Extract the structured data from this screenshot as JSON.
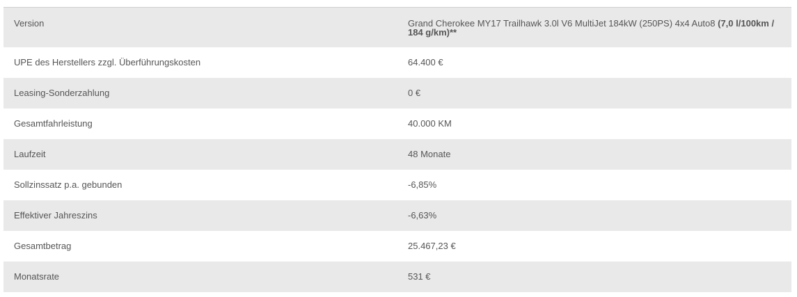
{
  "table": {
    "version": {
      "label": "Version",
      "value_text": "Grand Cherokee MY17 Trailhawk 3.0l V6 MultiJet 184kW (250PS) 4x4 Auto8",
      "value_bold": "(7,0 l/100km / 184 g/km)**"
    },
    "rows": [
      {
        "label": "UPE des Herstellers zzgl. Überführungskosten",
        "value": "64.400 €"
      },
      {
        "label": "Leasing-Sonderzahlung",
        "value": "0 €"
      },
      {
        "label": "Gesamtfahrleistung",
        "value": "40.000 KM"
      },
      {
        "label": "Laufzeit",
        "value": "48 Monate"
      },
      {
        "label": "Sollzinssatz p.a. gebunden",
        "value": "-6,85%"
      },
      {
        "label": "Effektiver Jahreszins",
        "value": "-6,63%"
      },
      {
        "label": "Gesamtbetrag",
        "value": "25.467,23 €"
      },
      {
        "label": "Monatsrate",
        "value": "531 €"
      }
    ]
  }
}
